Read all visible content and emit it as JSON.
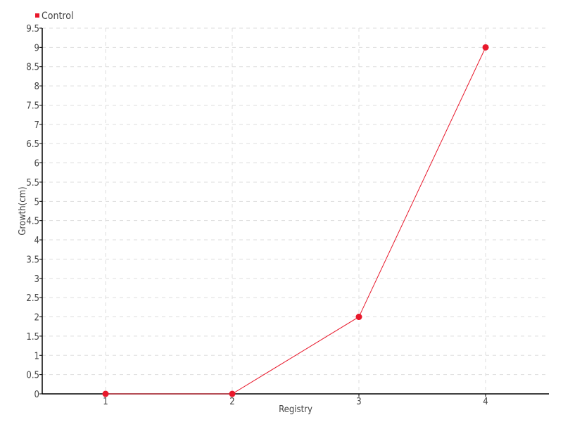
{
  "chart_data": {
    "type": "line",
    "title": "",
    "xlabel": "Registry",
    "ylabel": "Growth(cm)",
    "x": [
      1,
      2,
      3,
      4
    ],
    "xlim": [
      0.5,
      4.5
    ],
    "ylim": [
      0,
      9.5
    ],
    "y_ticks": [
      0,
      0.5,
      1,
      1.5,
      2,
      2.5,
      3,
      3.5,
      4,
      4.5,
      5,
      5.5,
      6,
      6.5,
      7,
      7.5,
      8,
      8.5,
      9,
      9.5
    ],
    "x_ticks": [
      1,
      2,
      3,
      4
    ],
    "grid": true,
    "legend_position": "top-left",
    "series": [
      {
        "name": "Control",
        "color": "#e8182b",
        "values": [
          0,
          0,
          2,
          9
        ]
      }
    ]
  }
}
